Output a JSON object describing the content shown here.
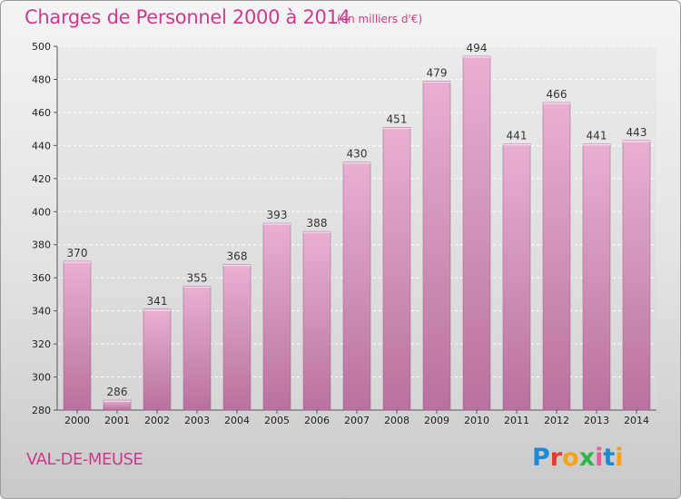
{
  "header": {
    "title": "Charges de Personnel 2000 à 2014",
    "subtitle": "(en milliers d'€)"
  },
  "footer": {
    "commune": "VAL-DE-MEUSE",
    "logo_letters": [
      "P",
      "r",
      "o",
      "x",
      "i",
      "t",
      "i"
    ],
    "logo_colors": [
      "#1d8ad6",
      "#e23c2c",
      "#f5a21a",
      "#35b34a",
      "#e85c9a",
      "#1d8ad6",
      "#f5a21a"
    ]
  },
  "colors": {
    "title": "#cc3b8d",
    "bar_top": "#e9b0d2",
    "bar_bottom": "#b8719e",
    "bar_stroke": "#a45a8a"
  },
  "chart_data": {
    "type": "bar",
    "categories": [
      "2000",
      "2001",
      "2002",
      "2003",
      "2004",
      "2005",
      "2006",
      "2007",
      "2008",
      "2009",
      "2010",
      "2011",
      "2012",
      "2013",
      "2014"
    ],
    "values": [
      370,
      286,
      341,
      355,
      368,
      393,
      388,
      430,
      451,
      479,
      494,
      441,
      466,
      441,
      443
    ],
    "title": "Charges de Personnel 2000 à 2014",
    "subtitle": "(en milliers d'€)",
    "xlabel": "",
    "ylabel": "",
    "ylim": [
      280,
      500
    ],
    "yticks": [
      280,
      300,
      320,
      340,
      360,
      380,
      400,
      420,
      440,
      460,
      480,
      500
    ],
    "grid": true
  }
}
